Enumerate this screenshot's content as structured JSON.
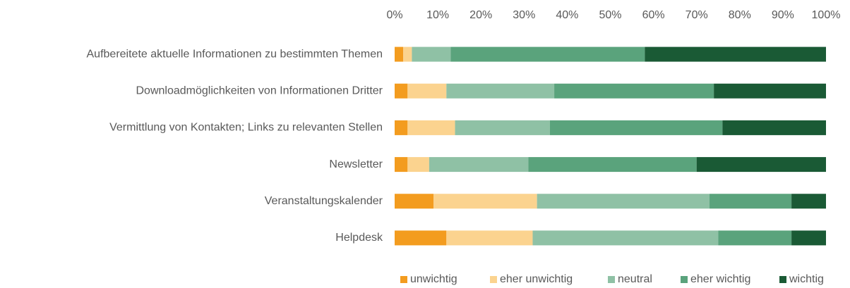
{
  "chart_data": {
    "type": "stacked-barh",
    "categories": [
      "Aufbereitete aktuelle Informationen zu bestimmten Themen",
      "Downloadmöglichkeiten von Informationen Dritter",
      "Vermittlung von Kontakten; Links zu relevanten Stellen",
      "Newsletter",
      "Veranstaltungskalender",
      "Helpdesk"
    ],
    "series": [
      {
        "name": "unwichtig",
        "color": "#f39c1f",
        "values": [
          2,
          3,
          3,
          3,
          9,
          12
        ]
      },
      {
        "name": "eher unwichtig",
        "color": "#fbd38f",
        "values": [
          2,
          9,
          11,
          5,
          24,
          20
        ]
      },
      {
        "name": "neutral",
        "color": "#8fc1a5",
        "values": [
          9,
          25,
          22,
          23,
          40,
          43
        ]
      },
      {
        "name": "eher wichtig",
        "color": "#5aa37c",
        "values": [
          45,
          37,
          40,
          39,
          19,
          17
        ]
      },
      {
        "name": "wichtig",
        "color": "#1a5a35",
        "values": [
          42,
          26,
          24,
          30,
          8,
          8
        ]
      }
    ],
    "xlim": [
      0,
      100
    ],
    "xticks": [
      {
        "value": 0,
        "label": "0%"
      },
      {
        "value": 10,
        "label": "10%"
      },
      {
        "value": 20,
        "label": "20%"
      },
      {
        "value": 30,
        "label": "30%"
      },
      {
        "value": 40,
        "label": "40%"
      },
      {
        "value": 50,
        "label": "50%"
      },
      {
        "value": 60,
        "label": "60%"
      },
      {
        "value": 70,
        "label": "70%"
      },
      {
        "value": 80,
        "label": "80%"
      },
      {
        "value": 90,
        "label": "90%"
      },
      {
        "value": 100,
        "label": "100%"
      }
    ],
    "grid": false,
    "legend": "bottom"
  }
}
